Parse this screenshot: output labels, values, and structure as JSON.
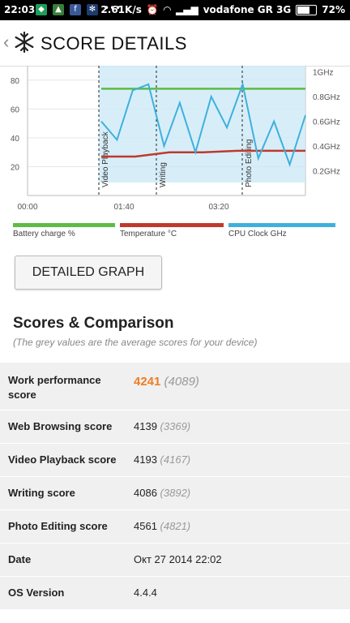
{
  "status_bar": {
    "time": "22:03",
    "speed": "2.61K/s",
    "carrier": "vodafone GR 3G",
    "battery": "72%",
    "battery_level": 0.72
  },
  "appbar": {
    "title": "SCORE DETAILS"
  },
  "chart_data": {
    "type": "line",
    "x_ticks": [
      "00:00",
      "01:40",
      "03:20"
    ],
    "y_left_ticks": [
      "20",
      "40",
      "60",
      "80"
    ],
    "y_right_ticks": [
      "0.2GHz",
      "0.4GHz",
      "0.6GHz",
      "0.8GHz",
      "1GHz"
    ],
    "section_labels": [
      "Video Playback",
      "Writing",
      "Photo Editing"
    ],
    "series": [
      {
        "name": "Battery charge %",
        "color": "#5dbb46",
        "values": [
          74,
          74,
          74,
          74,
          74,
          74,
          74
        ]
      },
      {
        "name": "Temperature °C",
        "color": "#c0392b",
        "values": [
          27,
          27,
          30,
          30,
          31,
          31,
          31
        ]
      },
      {
        "name": "CPU Clock GHz",
        "color": "#3fb0dc",
        "values": [
          0.6,
          0.45,
          0.85,
          0.9,
          0.4,
          0.75,
          0.35,
          0.8,
          0.55,
          0.9,
          0.3,
          0.6,
          0.25,
          0.65
        ]
      }
    ]
  },
  "legend": {
    "battery": "Battery charge %",
    "temperature": "Temperature °C",
    "cpu": "CPU Clock GHz"
  },
  "detailed_graph_button": "DETAILED GRAPH",
  "scores": {
    "title": "Scores & Comparison",
    "subtitle": "(The grey values are the average scores for your device)",
    "rows": [
      {
        "label": "Work performance score",
        "value": "4241",
        "avg": "(4089)"
      },
      {
        "label": "Web Browsing score",
        "value": "4139",
        "avg": "(3369)"
      },
      {
        "label": "Video Playback score",
        "value": "4193",
        "avg": "(4167)"
      },
      {
        "label": "Writing score",
        "value": "4086",
        "avg": "(3892)"
      },
      {
        "label": "Photo Editing score",
        "value": "4561",
        "avg": "(4821)"
      },
      {
        "label": "Date",
        "value": "Окт 27 2014 22:02",
        "avg": ""
      },
      {
        "label": "OS Version",
        "value": "4.4.4",
        "avg": ""
      }
    ]
  },
  "colors": {
    "accent": "#ee7d22",
    "battery": "#5dbb46",
    "temperature": "#c0392b",
    "cpu": "#3fb0dc"
  }
}
